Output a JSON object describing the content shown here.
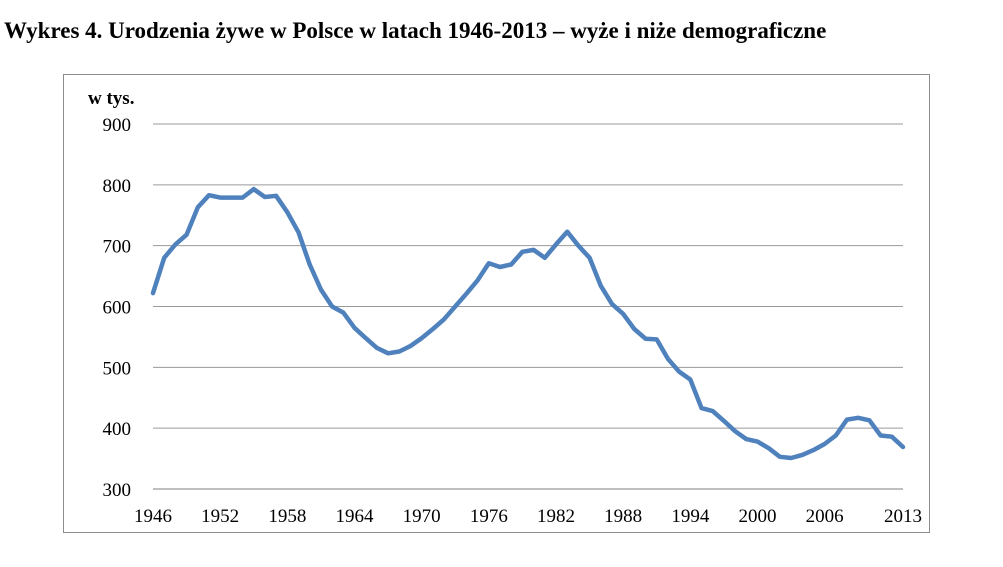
{
  "title": "Wykres 4. Urodzenia żywe w Polsce w latach 1946-2013 – wyże i niże demograficzne",
  "chart_data": {
    "type": "line",
    "ylabel": "w tys.",
    "ylim": [
      300,
      900
    ],
    "yticks": [
      300,
      400,
      500,
      600,
      700,
      800,
      900
    ],
    "xlim": [
      1946,
      2013
    ],
    "xticks": [
      "1946",
      "1952",
      "1958",
      "1964",
      "1970",
      "1976",
      "1982",
      "1988",
      "1994",
      "2000",
      "2006",
      "2013"
    ],
    "grid": true,
    "series": [
      {
        "color": "#4f81bd",
        "x": [
          1946,
          1947,
          1948,
          1949,
          1950,
          1951,
          1952,
          1953,
          1954,
          1955,
          1956,
          1957,
          1958,
          1959,
          1960,
          1961,
          1962,
          1963,
          1964,
          1965,
          1966,
          1967,
          1968,
          1969,
          1970,
          1971,
          1972,
          1973,
          1974,
          1975,
          1976,
          1977,
          1978,
          1979,
          1980,
          1981,
          1982,
          1983,
          1984,
          1985,
          1986,
          1987,
          1988,
          1989,
          1990,
          1991,
          1992,
          1993,
          1994,
          1995,
          1996,
          1997,
          1998,
          1999,
          2000,
          2001,
          2002,
          2003,
          2004,
          2005,
          2006,
          2007,
          2008,
          2009,
          2010,
          2011,
          2012,
          2013
        ],
        "values": [
          622,
          680,
          702,
          718,
          763,
          783,
          779,
          779,
          779,
          793,
          780,
          782,
          755,
          722,
          669,
          628,
          600,
          590,
          565,
          548,
          532,
          523,
          526,
          535,
          548,
          563,
          579,
          600,
          621,
          643,
          671,
          665,
          669,
          690,
          693,
          680,
          702,
          723,
          700,
          680,
          634,
          604,
          588,
          563,
          547,
          546,
          514,
          493,
          480,
          433,
          428,
          412,
          395,
          382,
          378,
          367,
          353,
          351,
          356,
          364,
          374,
          388,
          414,
          417,
          413,
          388,
          386,
          369
        ]
      }
    ]
  }
}
